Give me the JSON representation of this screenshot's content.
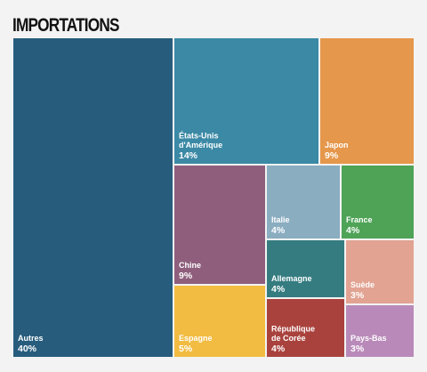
{
  "chart_data": {
    "type": "treemap",
    "title": "IMPORTATIONS",
    "items": [
      {
        "name": "Autres",
        "value": 40,
        "label": "40%",
        "color": "#275c7d"
      },
      {
        "name": "États-Unis d'Amérique",
        "lines": [
          "États-Unis",
          "d'Amérique"
        ],
        "value": 14,
        "label": "14%",
        "color": "#3b89a5"
      },
      {
        "name": "Japon",
        "value": 9,
        "label": "9%",
        "color": "#e5974b"
      },
      {
        "name": "Chine",
        "value": 9,
        "label": "9%",
        "color": "#8e5e7c"
      },
      {
        "name": "Italie",
        "value": 4,
        "label": "4%",
        "color": "#8aadc0"
      },
      {
        "name": "France",
        "value": 4,
        "label": "4%",
        "color": "#4ea357"
      },
      {
        "name": "Allemagne",
        "value": 4,
        "label": "4%",
        "color": "#357c80"
      },
      {
        "name": "Suède",
        "value": 3,
        "label": "3%",
        "color": "#e2a392"
      },
      {
        "name": "Espagne",
        "value": 5,
        "label": "5%",
        "color": "#f2bc42"
      },
      {
        "name": "République de Corée",
        "lines": [
          "République",
          "de Corée"
        ],
        "value": 4,
        "label": "4%",
        "color": "#a9423d"
      },
      {
        "name": "Pays-Bas",
        "value": 3,
        "label": "3%",
        "color": "#b98ab9"
      }
    ]
  }
}
